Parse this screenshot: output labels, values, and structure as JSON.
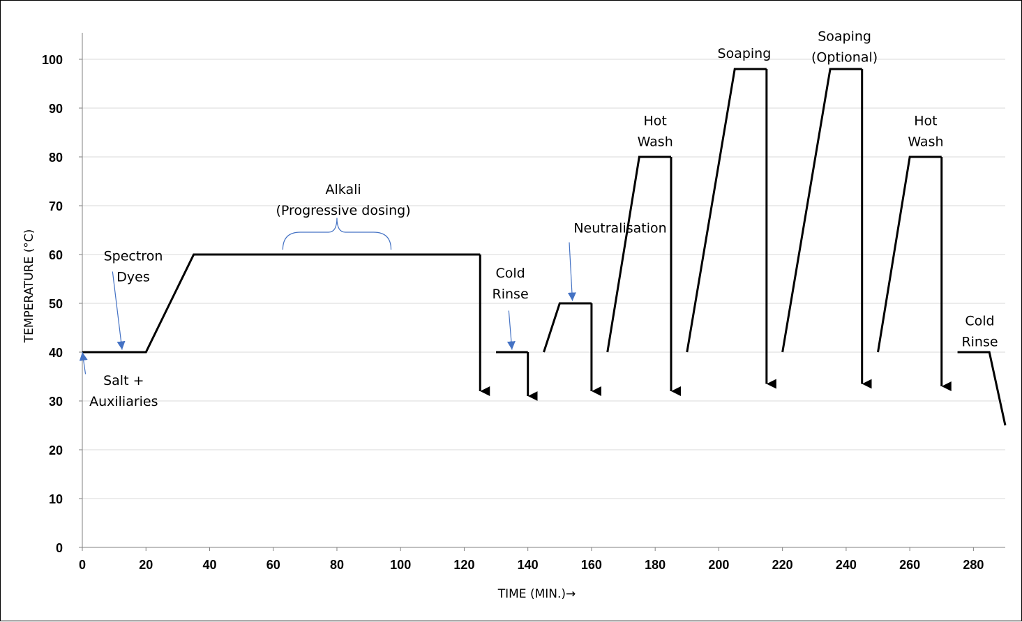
{
  "chart_data": {
    "type": "line",
    "title": "",
    "xlabel": "TIME (MIN.)→",
    "ylabel": "TEMPERATURE (°C)",
    "xlim": [
      0,
      290
    ],
    "ylim": [
      0,
      100
    ],
    "x_ticks": [
      0,
      20,
      40,
      60,
      80,
      100,
      120,
      140,
      160,
      180,
      200,
      220,
      240,
      260,
      280
    ],
    "y_ticks": [
      0,
      10,
      20,
      30,
      40,
      50,
      60,
      70,
      80,
      90,
      100
    ],
    "grid": true,
    "colors": {
      "line": "#000000",
      "grid": "#d9d9d9",
      "pointer": "#4472c4"
    },
    "series": [
      {
        "x": [
          0,
          20,
          35,
          125
        ],
        "y": [
          40,
          40,
          60,
          60
        ]
      },
      {
        "x": [
          130,
          140
        ],
        "y": [
          40,
          40
        ]
      },
      {
        "x": [
          145,
          150,
          160
        ],
        "y": [
          40,
          50,
          50
        ]
      },
      {
        "x": [
          165,
          175,
          185
        ],
        "y": [
          40,
          80,
          80
        ]
      },
      {
        "x": [
          190,
          205,
          215
        ],
        "y": [
          40,
          98,
          98
        ]
      },
      {
        "x": [
          220,
          235,
          245
        ],
        "y": [
          40,
          98,
          98
        ]
      },
      {
        "x": [
          250,
          260,
          270
        ],
        "y": [
          40,
          80,
          80
        ]
      },
      {
        "x": [
          275,
          285,
          290
        ],
        "y": [
          40,
          40,
          25
        ]
      }
    ],
    "drop_arrows": [
      {
        "x": 125,
        "from": 60,
        "to": 32
      },
      {
        "x": 140,
        "from": 40,
        "to": 31
      },
      {
        "x": 160,
        "from": 50,
        "to": 32
      },
      {
        "x": 185,
        "from": 80,
        "to": 32
      },
      {
        "x": 215,
        "from": 98,
        "to": 33.5
      },
      {
        "x": 245,
        "from": 98,
        "to": 33.5
      },
      {
        "x": 270,
        "from": 80,
        "to": 33
      }
    ],
    "annotations": [
      {
        "lines": [
          "Salt +",
          "Auxiliaries"
        ],
        "x": 13,
        "y": 33.3
      },
      {
        "lines": [
          "Spectron",
          "Dyes"
        ],
        "x": 16,
        "y": 58.8
      },
      {
        "lines": [
          "Alkali",
          "(Progressive dosing)"
        ],
        "x": 82,
        "y": 72.4
      },
      {
        "lines": [
          "Cold",
          "Rinse"
        ],
        "x": 134.5,
        "y": 55.3
      },
      {
        "lines": [
          "Neutralisation"
        ],
        "x": 169,
        "y": 64.5
      },
      {
        "lines": [
          "Hot",
          "Wash"
        ],
        "x": 180,
        "y": 86.5
      },
      {
        "lines": [
          "Soaping"
        ],
        "x": 208,
        "y": 100.3
      },
      {
        "lines": [
          "Soaping",
          "(Optional)"
        ],
        "x": 239.5,
        "y": 103.8
      },
      {
        "lines": [
          "Hot",
          "Wash"
        ],
        "x": 265,
        "y": 86.5
      },
      {
        "lines": [
          "Cold",
          "Rinse"
        ],
        "x": 282,
        "y": 45.5
      }
    ],
    "pointers": [
      {
        "x1": 1,
        "y1": 35.5,
        "x2": 0,
        "y2": 40
      },
      {
        "x1": 9.5,
        "y1": 56.5,
        "x2": 12.5,
        "y2": 40.5
      },
      {
        "x1": 134,
        "y1": 48.5,
        "x2": 135,
        "y2": 40.5
      },
      {
        "x1": 153,
        "y1": 62.5,
        "x2": 154,
        "y2": 50.5
      }
    ],
    "brace": {
      "x_from": 63,
      "x_to": 97,
      "y_base": 61,
      "y_tip": 67.5
    }
  }
}
